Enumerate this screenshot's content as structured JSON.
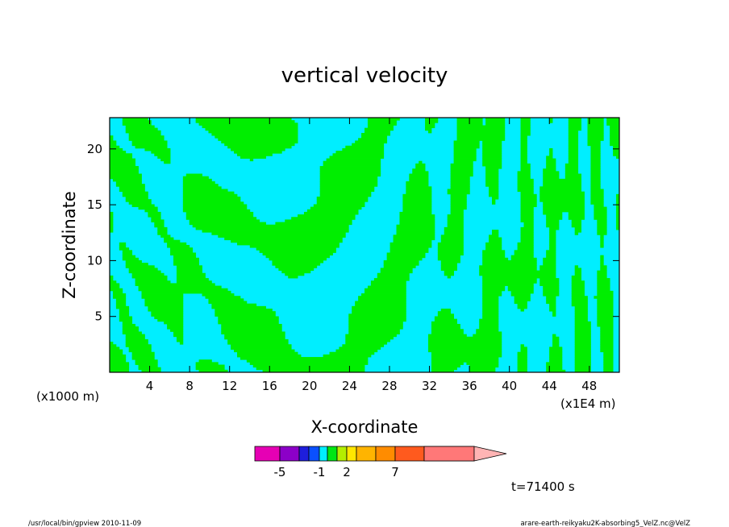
{
  "chart_data": {
    "type": "heatmap",
    "title": "vertical velocity",
    "xlabel": "X-coordinate",
    "ylabel": "Z-coordinate",
    "x_unit_left": "(x1000 m)",
    "x_unit_right": "(x1E4 m)",
    "xlim": [
      0,
      51
    ],
    "ylim": [
      0,
      22.8
    ],
    "x_ticks": [
      4,
      8,
      12,
      16,
      20,
      24,
      28,
      32,
      36,
      40,
      44,
      48
    ],
    "y_ticks": [
      5,
      10,
      15,
      20
    ],
    "time_label": "t=71400 s",
    "colorbar": {
      "colors": [
        "#e600b4",
        "#8c00c8",
        "#1e1edc",
        "#0a50ff",
        "#00eeff",
        "#00e614",
        "#b4ee00",
        "#ffe600",
        "#ffb400",
        "#ff8c00",
        "#ff5a1e",
        "#ff1e1e",
        "#ff7878",
        "#ffb4b4"
      ],
      "tick_labels": [
        "-5",
        "-1",
        "2",
        "7"
      ]
    },
    "field_colors": {
      "positive": "#00ee00",
      "negative": "#00eeff"
    }
  },
  "footer": {
    "left": "/usr/local/bin/gpview   2010-11-09",
    "right": "arare-earth-reikyaku2K-absorbing5_VelZ.nc@VelZ"
  }
}
